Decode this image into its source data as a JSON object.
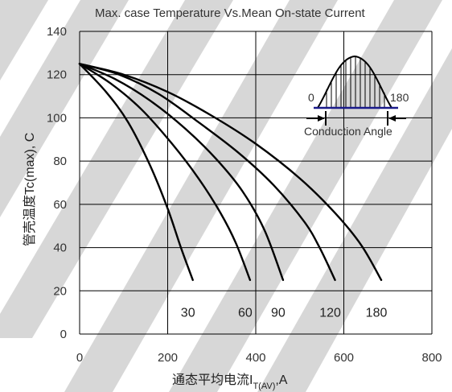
{
  "chart_data": {
    "type": "line",
    "title": "Max. case Temperature Vs.Mean On-state Current",
    "xlabel": "通态平均电流I",
    "xlabel_sub": "T(AV)",
    "xlabel_unit": ",A",
    "ylabel": "管壳温度Tc(max), C",
    "xlim": [
      0,
      800
    ],
    "ylim": [
      0,
      140
    ],
    "xticks": [
      0,
      200,
      400,
      600,
      800
    ],
    "yticks": [
      0,
      20,
      40,
      60,
      80,
      100,
      120,
      140
    ],
    "grid": true,
    "series": [
      {
        "name": "30",
        "x": [
          0,
          60,
          110,
          160,
          200,
          230,
          257
        ],
        "y": [
          125,
          112,
          98,
          78,
          58,
          40,
          25
        ]
      },
      {
        "name": "60",
        "x": [
          0,
          70,
          140,
          210,
          270,
          320,
          355,
          387
        ],
        "y": [
          125,
          116,
          104,
          88,
          72,
          56,
          42,
          25
        ]
      },
      {
        "name": "90",
        "x": [
          0,
          80,
          160,
          240,
          310,
          370,
          420,
          462
        ],
        "y": [
          125,
          118,
          108,
          95,
          81,
          66,
          48,
          25
        ]
      },
      {
        "name": "120",
        "x": [
          0,
          90,
          180,
          270,
          360,
          440,
          510,
          545,
          580
        ],
        "y": [
          125,
          120,
          111,
          98,
          84,
          69,
          52,
          40,
          25
        ]
      },
      {
        "name": "180",
        "x": [
          0,
          100,
          200,
          300,
          400,
          500,
          580,
          640,
          685
        ],
        "y": [
          125,
          120,
          112,
          101,
          88,
          72,
          56,
          41,
          25
        ]
      }
    ],
    "inset": {
      "left_label": "0",
      "right_label": "180",
      "caption": "Conduction Angle"
    }
  }
}
